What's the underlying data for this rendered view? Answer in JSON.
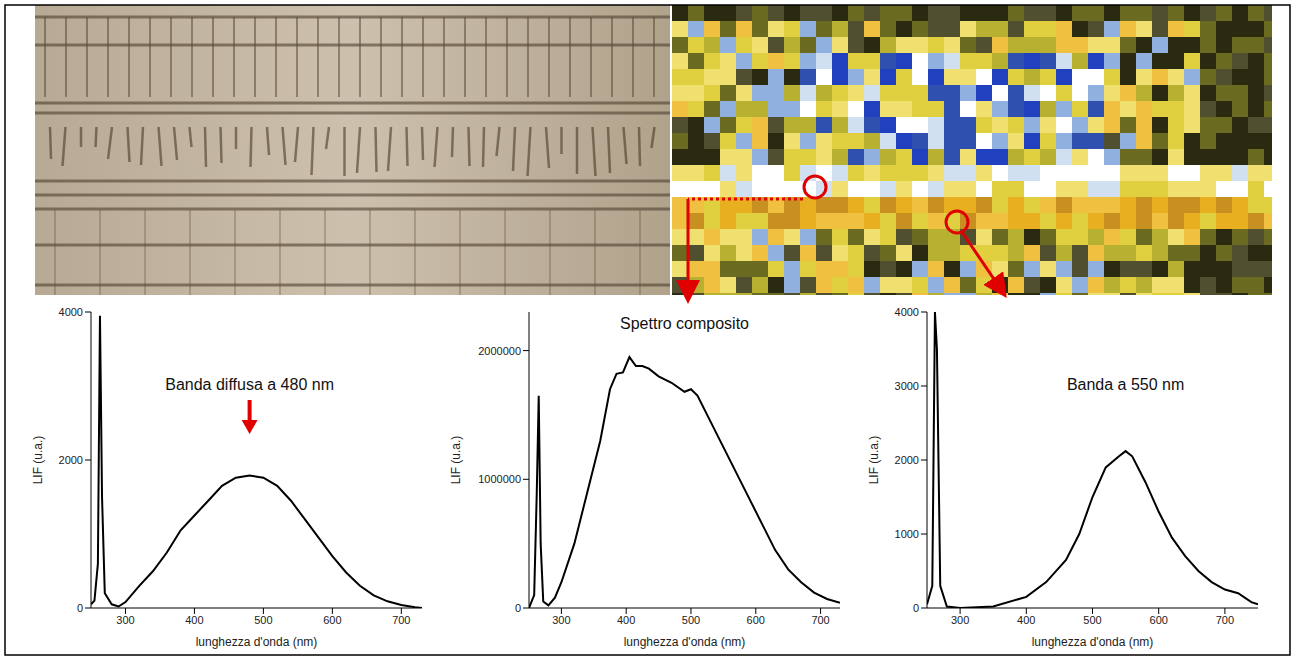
{
  "chart_data": [
    {
      "type": "line",
      "x_label": "lunghezza d'onda (nm)",
      "y_label": "LIF (u.a.)",
      "color": "#000000",
      "x": [
        250,
        255,
        260,
        263,
        266,
        270,
        280,
        290,
        300,
        320,
        340,
        360,
        380,
        400,
        420,
        440,
        460,
        480,
        500,
        520,
        540,
        560,
        580,
        600,
        620,
        640,
        660,
        680,
        700,
        720,
        730
      ],
      "values": [
        50,
        100,
        600,
        3950,
        1500,
        200,
        50,
        20,
        80,
        300,
        500,
        750,
        1050,
        1250,
        1450,
        1650,
        1760,
        1790,
        1760,
        1650,
        1450,
        1200,
        950,
        700,
        480,
        300,
        170,
        90,
        40,
        10,
        0
      ],
      "xlim": [
        250,
        730
      ],
      "ylim": [
        0,
        4000
      ],
      "xticks": [
        300,
        400,
        500,
        600,
        700
      ],
      "yticks": [
        0,
        2000,
        4000
      ],
      "annotations": [
        {
          "text": "Banda diffusa a 480 nm",
          "x": 480,
          "y": 3000,
          "marker": "arrow"
        }
      ]
    },
    {
      "type": "line",
      "x_label": "lunghezza d'onda (nm)",
      "y_label": "LIF (u.a.)",
      "color": "#000000",
      "x": [
        250,
        258,
        262,
        265,
        268,
        272,
        280,
        290,
        300,
        320,
        340,
        360,
        375,
        385,
        395,
        405,
        415,
        425,
        435,
        450,
        470,
        490,
        500,
        510,
        530,
        550,
        570,
        590,
        610,
        630,
        650,
        670,
        690,
        710,
        730
      ],
      "values": [
        0,
        100000,
        900000,
        1650000,
        500000,
        50000,
        20000,
        80000,
        200000,
        500000,
        900000,
        1300000,
        1700000,
        1820000,
        1830000,
        1950000,
        1880000,
        1880000,
        1860000,
        1800000,
        1750000,
        1680000,
        1700000,
        1650000,
        1450000,
        1250000,
        1050000,
        850000,
        650000,
        450000,
        300000,
        200000,
        120000,
        70000,
        40000
      ],
      "xlim": [
        250,
        730
      ],
      "ylim": [
        0,
        2300000
      ],
      "xticks": [
        300,
        400,
        500,
        600,
        700
      ],
      "yticks": [
        0,
        1000000,
        2000000
      ],
      "annotations": [
        {
          "text": "Spettro composito",
          "x": 490,
          "y": 2200000
        }
      ]
    },
    {
      "type": "line",
      "x_label": "lunghezza d'onda (nm)",
      "y_label": "LIF (u.a.)",
      "color": "#000000",
      "x": [
        250,
        258,
        262,
        265,
        270,
        280,
        300,
        350,
        400,
        430,
        460,
        480,
        500,
        520,
        540,
        550,
        560,
        580,
        600,
        620,
        640,
        660,
        680,
        700,
        720,
        740,
        750
      ],
      "values": [
        50,
        300,
        4000,
        3500,
        300,
        20,
        0,
        20,
        150,
        350,
        650,
        1000,
        1500,
        1900,
        2050,
        2120,
        2050,
        1700,
        1300,
        950,
        700,
        500,
        350,
        250,
        200,
        80,
        50
      ],
      "xlim": [
        250,
        750
      ],
      "ylim": [
        0,
        4000
      ],
      "xticks": [
        300,
        400,
        500,
        600,
        700
      ],
      "yticks": [
        0,
        1000,
        2000,
        3000,
        4000
      ],
      "annotations": [
        {
          "text": "Banda a 550 nm",
          "x": 550,
          "y": 3000
        }
      ]
    }
  ]
}
